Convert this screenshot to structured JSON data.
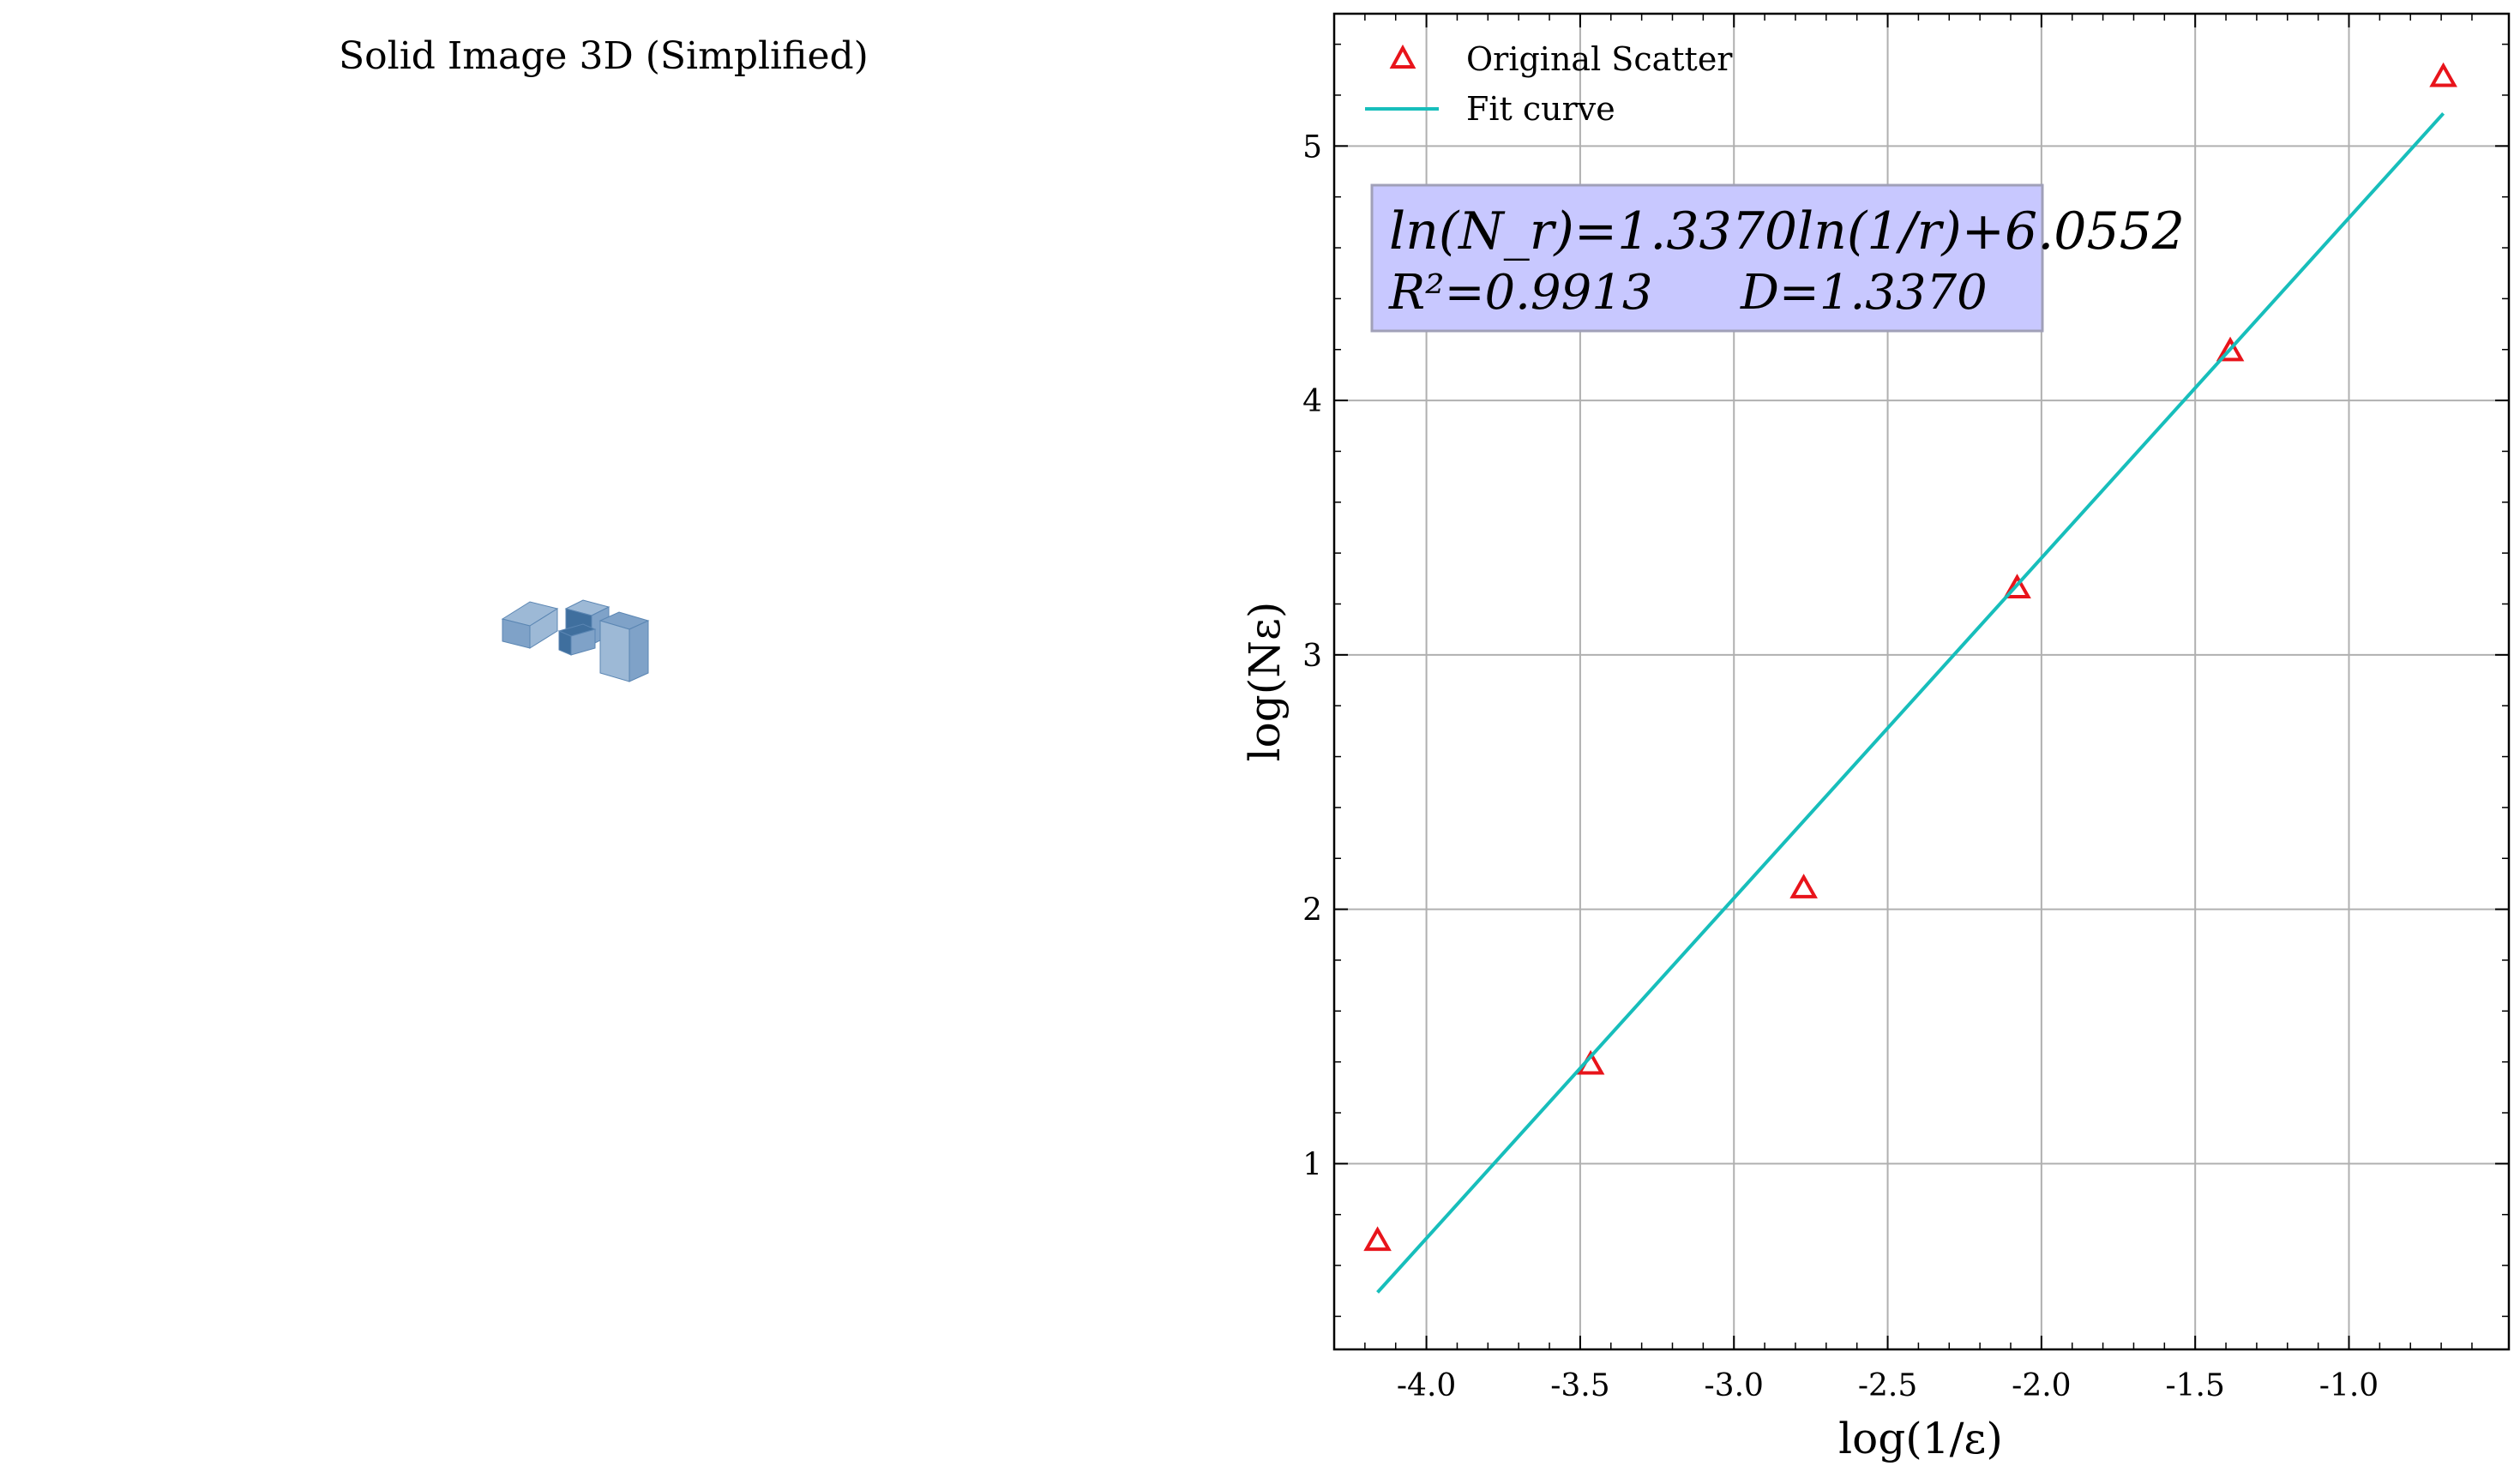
{
  "figure": {
    "left_panel": {
      "title": "Solid Image 3D (Simplified)",
      "voxel_colors": {
        "face_light": "#9db9d6",
        "face_mid": "#7fa2c8",
        "face_dark": "#3f6f9e",
        "edge": "#5b86b3"
      }
    }
  },
  "chart_data": {
    "type": "scatter",
    "title": "",
    "xlabel": "log(1/ε)",
    "ylabel": "log(Nε)",
    "xlim": [
      -4.3,
      -0.48
    ],
    "ylim": [
      0.27,
      5.52
    ],
    "xticks": [
      -4.0,
      -3.5,
      -3.0,
      -2.5,
      -2.0,
      -1.5,
      -1.0
    ],
    "xtick_labels": [
      "-4.0",
      "-3.5",
      "-3.0",
      "-2.5",
      "-2.0",
      "-1.5",
      "-1.0"
    ],
    "yticks": [
      1,
      2,
      3,
      4,
      5
    ],
    "ytick_labels": [
      "1",
      "2",
      "3",
      "4",
      "5"
    ],
    "grid": true,
    "legend_position": "top-left",
    "series": [
      {
        "name": "Original Scatter",
        "kind": "scatter",
        "marker": "triangle-open",
        "color": "#e8141b",
        "x": [
          -4.159,
          -3.466,
          -2.773,
          -2.079,
          -1.386,
          -0.693
        ],
        "y": [
          0.693,
          1.386,
          2.079,
          3.258,
          4.19,
          5.268
        ]
      },
      {
        "name": "Fit curve",
        "kind": "line",
        "color": "#17bebb",
        "x": [
          -4.159,
          -0.693
        ],
        "y": [
          0.494,
          5.128
        ]
      }
    ],
    "annotation": {
      "line1": "ln(N_r)=1.3370ln(1/r)+6.0552",
      "r2_text": "R²=0.9913",
      "d_text": "D=1.3370",
      "bg_color": "#c8c8ff",
      "border_color": "#a0a0b8"
    }
  }
}
